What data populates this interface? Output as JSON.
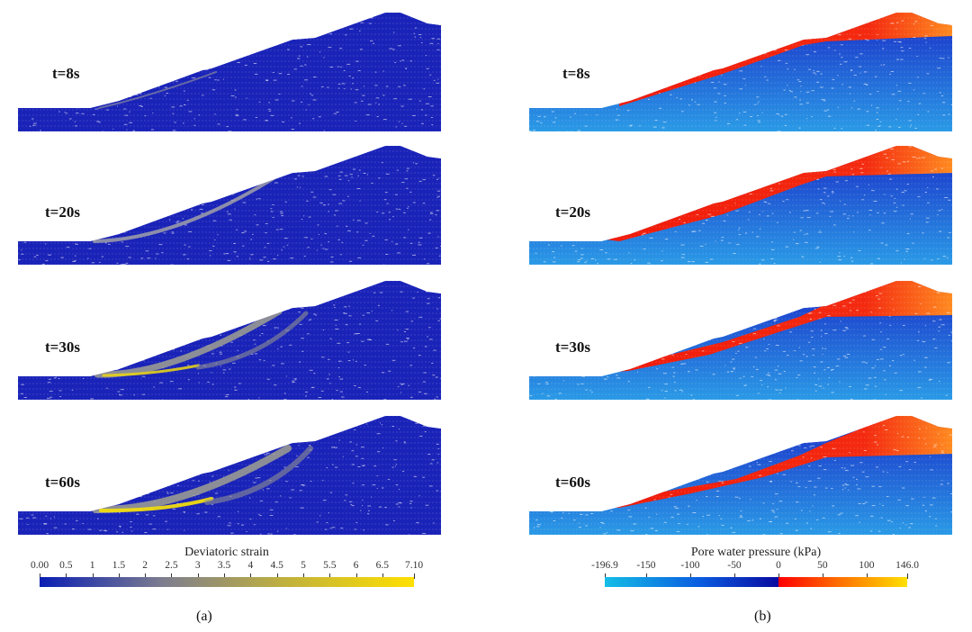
{
  "figure": {
    "panels": [
      {
        "id": "a",
        "caption": "(a)",
        "field": "Deviatoric strain",
        "time_labels": [
          "t=8s",
          "t=20s",
          "t=30s",
          "t=60s"
        ],
        "colorbar": {
          "title": "Deviatoric strain",
          "min": 0.0,
          "max": 7.1,
          "ticks": [
            "0.00",
            "0.5",
            "1",
            "1.5",
            "2",
            "2.5",
            "3",
            "3.5",
            "4",
            "4.5",
            "5",
            "5.5",
            "6",
            "6.5",
            "7.10"
          ],
          "tick_values": [
            0,
            0.5,
            1,
            1.5,
            2,
            2.5,
            3,
            3.5,
            4,
            4.5,
            5,
            5.5,
            6,
            6.5,
            7.1
          ],
          "colors": [
            "#0a1eb4",
            "#7e7e8e",
            "#c2b23a",
            "#ffe000"
          ]
        }
      },
      {
        "id": "b",
        "caption": "(b)",
        "field": "Pore water pressure (kPa)",
        "time_labels": [
          "t=8s",
          "t=20s",
          "t=30s",
          "t=60s"
        ],
        "colorbar": {
          "title": "Pore water pressure (kPa)",
          "min": -196.9,
          "max": 146.0,
          "ticks": [
            "-196.9",
            "-150",
            "-100",
            "-50",
            "0",
            "50",
            "100",
            "146.0"
          ],
          "tick_values": [
            -196.9,
            -150,
            -100,
            -50,
            0,
            50,
            100,
            146.0
          ],
          "colors_negative": [
            "#14bde6",
            "#0a5ce0",
            "#0a0aa0"
          ],
          "colors_positive": [
            "#ff0000",
            "#ff6a00",
            "#ffe000"
          ]
        }
      }
    ],
    "colors": {
      "strain_low": "#1a23b8",
      "pwp_positive": "#f22a10",
      "pwp_negative_deep": "#1a2ec8",
      "pwp_negative_shallow": "#2a9ae6"
    }
  }
}
